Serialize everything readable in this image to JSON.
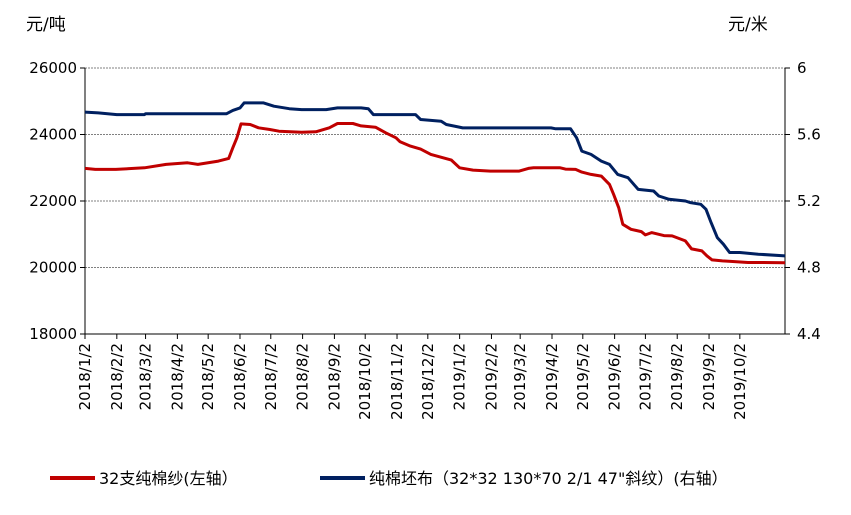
{
  "chart_data": {
    "type": "line",
    "left_unit": "元/吨",
    "right_unit": "元/米",
    "left_axis": {
      "min": 18000,
      "max": 26000,
      "ticks": [
        18000,
        20000,
        22000,
        24000,
        26000
      ],
      "tick_labels": [
        "18000",
        "20000",
        "22000",
        "24000",
        "26000"
      ]
    },
    "right_axis": {
      "min": 4.4,
      "max": 6.0,
      "ticks": [
        4.4,
        4.8,
        5.2,
        5.6,
        6.0
      ],
      "tick_labels": [
        "4.4",
        "4.8",
        "5.2",
        "5.6",
        "6"
      ]
    },
    "x_start": "2018/1/2",
    "x_end": "2019/11/15",
    "x_tick_dates": [
      "2018/1/2",
      "2018/2/2",
      "2018/3/2",
      "2018/4/2",
      "2018/5/2",
      "2018/6/2",
      "2018/7/2",
      "2018/8/2",
      "2018/9/2",
      "2018/10/2",
      "2018/11/2",
      "2018/12/2",
      "2019/1/2",
      "2019/2/2",
      "2019/3/2",
      "2019/4/2",
      "2019/5/2",
      "2019/6/2",
      "2019/7/2",
      "2019/8/2",
      "2019/9/2",
      "2019/10/2"
    ],
    "grid": "horizontal",
    "legend_position": "bottom",
    "series": [
      {
        "name": "32支纯棉纱(左轴）",
        "axis": "left",
        "color": "#C00000",
        "points": [
          [
            "2018/1/2",
            22980
          ],
          [
            "2018/1/12",
            22950
          ],
          [
            "2018/2/1",
            22950
          ],
          [
            "2018/3/1",
            23000
          ],
          [
            "2018/3/22",
            23100
          ],
          [
            "2018/4/12",
            23150
          ],
          [
            "2018/4/22",
            23100
          ],
          [
            "2018/5/12",
            23200
          ],
          [
            "2018/5/22",
            23280
          ],
          [
            "2018/5/26",
            23600
          ],
          [
            "2018/5/30",
            23900
          ],
          [
            "2018/6/3",
            24320
          ],
          [
            "2018/6/12",
            24300
          ],
          [
            "2018/6/20",
            24200
          ],
          [
            "2018/7/1",
            24150
          ],
          [
            "2018/7/10",
            24100
          ],
          [
            "2018/8/1",
            24070
          ],
          [
            "2018/8/15",
            24080
          ],
          [
            "2018/8/28",
            24200
          ],
          [
            "2018/9/5",
            24330
          ],
          [
            "2018/9/20",
            24330
          ],
          [
            "2018/9/28",
            24260
          ],
          [
            "2018/10/12",
            24220
          ],
          [
            "2018/10/22",
            24050
          ],
          [
            "2018/11/1",
            23900
          ],
          [
            "2018/11/5",
            23780
          ],
          [
            "2018/11/15",
            23650
          ],
          [
            "2018/11/25",
            23560
          ],
          [
            "2018/12/5",
            23400
          ],
          [
            "2018/12/25",
            23230
          ],
          [
            "2019/1/2",
            23000
          ],
          [
            "2019/1/15",
            22930
          ],
          [
            "2019/2/1",
            22900
          ],
          [
            "2019/3/1",
            22900
          ],
          [
            "2019/3/10",
            22980
          ],
          [
            "2019/3/15",
            23000
          ],
          [
            "2019/4/10",
            23000
          ],
          [
            "2019/4/15",
            22960
          ],
          [
            "2019/4/25",
            22950
          ],
          [
            "2019/5/1",
            22870
          ],
          [
            "2019/5/10",
            22800
          ],
          [
            "2019/5/20",
            22750
          ],
          [
            "2019/5/28",
            22500
          ],
          [
            "2019/6/1",
            22200
          ],
          [
            "2019/6/6",
            21800
          ],
          [
            "2019/6/10",
            21300
          ],
          [
            "2019/6/18",
            21150
          ],
          [
            "2019/6/28",
            21080
          ],
          [
            "2019/7/2",
            20980
          ],
          [
            "2019/7/8",
            21050
          ],
          [
            "2019/7/12",
            21020
          ],
          [
            "2019/7/20",
            20960
          ],
          [
            "2019/7/28",
            20950
          ],
          [
            "2019/8/10",
            20800
          ],
          [
            "2019/8/16",
            20560
          ],
          [
            "2019/8/26",
            20500
          ],
          [
            "2019/8/31",
            20350
          ],
          [
            "2019/9/5",
            20230
          ],
          [
            "2019/9/15",
            20200
          ],
          [
            "2019/9/25",
            20180
          ],
          [
            "2019/10/10",
            20150
          ],
          [
            "2019/10/25",
            20150
          ],
          [
            "2019/11/15",
            20140
          ]
        ]
      },
      {
        "name": "纯棉坯布（32*32 130*70 2/1 47\"斜纹）(右轴）",
        "axis": "right",
        "color": "#002060",
        "points": [
          [
            "2018/1/2",
            5.735
          ],
          [
            "2018/1/15",
            5.73
          ],
          [
            "2018/2/2",
            5.72
          ],
          [
            "2018/3/1",
            5.72
          ],
          [
            "2018/3/2",
            5.725
          ],
          [
            "2018/5/20",
            5.725
          ],
          [
            "2018/5/26",
            5.745
          ],
          [
            "2018/6/2",
            5.76
          ],
          [
            "2018/6/6",
            5.79
          ],
          [
            "2018/6/25",
            5.79
          ],
          [
            "2018/7/5",
            5.77
          ],
          [
            "2018/7/20",
            5.755
          ],
          [
            "2018/8/1",
            5.75
          ],
          [
            "2018/8/25",
            5.75
          ],
          [
            "2018/9/5",
            5.76
          ],
          [
            "2018/9/28",
            5.76
          ],
          [
            "2018/10/5",
            5.755
          ],
          [
            "2018/10/10",
            5.72
          ],
          [
            "2018/11/5",
            5.72
          ],
          [
            "2018/11/20",
            5.72
          ],
          [
            "2018/11/25",
            5.69
          ],
          [
            "2018/12/15",
            5.68
          ],
          [
            "2018/12/20",
            5.66
          ],
          [
            "2019/1/1",
            5.645
          ],
          [
            "2019/1/5",
            5.64
          ],
          [
            "2019/4/1",
            5.64
          ],
          [
            "2019/4/5",
            5.635
          ],
          [
            "2019/4/20",
            5.635
          ],
          [
            "2019/4/26",
            5.58
          ],
          [
            "2019/5/1",
            5.5
          ],
          [
            "2019/5/10",
            5.48
          ],
          [
            "2019/5/20",
            5.44
          ],
          [
            "2019/5/28",
            5.42
          ],
          [
            "2019/6/5",
            5.36
          ],
          [
            "2019/6/15",
            5.34
          ],
          [
            "2019/6/25",
            5.27
          ],
          [
            "2019/7/10",
            5.26
          ],
          [
            "2019/7/15",
            5.23
          ],
          [
            "2019/7/25",
            5.21
          ],
          [
            "2019/8/10",
            5.2
          ],
          [
            "2019/8/15",
            5.19
          ],
          [
            "2019/8/25",
            5.18
          ],
          [
            "2019/8/30",
            5.15
          ],
          [
            "2019/9/4",
            5.07
          ],
          [
            "2019/9/10",
            4.98
          ],
          [
            "2019/9/16",
            4.94
          ],
          [
            "2019/9/22",
            4.89
          ],
          [
            "2019/10/2",
            4.89
          ],
          [
            "2019/10/20",
            4.88
          ],
          [
            "2019/11/15",
            4.87
          ]
        ]
      }
    ]
  }
}
